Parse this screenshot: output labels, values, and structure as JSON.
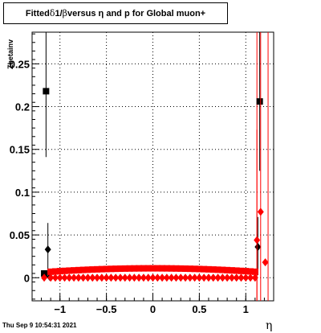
{
  "title": {
    "prefix": "Fitted ",
    "delta": "δ",
    "middle": " 1/",
    "beta": "β",
    "suffix": " versus η and p for Global muon+"
  },
  "timestamp": "Thu Sep  9 10:54:31 2021",
  "x_axis_label": "η",
  "y_axis_label": "Zbetainv",
  "colors": {
    "black_series": "#000000",
    "red_series": "#ff0000",
    "grid": "#000000"
  },
  "chart_data": {
    "type": "scatter",
    "xlim": [
      -1.3,
      1.3
    ],
    "ylim": [
      -0.027,
      0.287
    ],
    "x_ticks": [
      -1,
      -0.5,
      0,
      0.5,
      1
    ],
    "x_tick_labels": [
      "−1",
      "−0.5",
      "0",
      "0.5",
      "1"
    ],
    "y_ticks": [
      0,
      0.05,
      0.1,
      0.15,
      0.2,
      0.25
    ],
    "y_tick_labels": [
      "0",
      "0.05",
      "0.1",
      "0.15",
      "0.2",
      "0.25"
    ],
    "grid": true,
    "series": [
      {
        "marker": "square",
        "color": "#000000",
        "points": [
          {
            "x": -1.15,
            "y": 0.218,
            "ylo": 0.141,
            "yhi": 0.287
          },
          {
            "x": -1.17,
            "y": 0.005
          },
          {
            "x": 1.15,
            "y": 0.206,
            "ylo": 0.125,
            "yhi": 0.287
          }
        ]
      },
      {
        "marker": "diamond",
        "color": "#000000",
        "points": [
          {
            "x": -1.13,
            "y": 0.033,
            "ylo": 0.003,
            "yhi": 0.064
          },
          {
            "x": -1.11,
            "y": 0.001
          },
          {
            "x": 1.13,
            "y": 0.036,
            "ylo": 0.003,
            "yhi": 0.071
          }
        ]
      },
      {
        "marker": "square",
        "color": "#ff0000",
        "band": {
          "x_start": -1.1,
          "x_end": 1.1,
          "y_edge": 0.007,
          "y_mid": 0.011
        }
      },
      {
        "marker": "diamond",
        "color": "#ff0000",
        "band": {
          "x_start": -1.1,
          "x_end": 1.1,
          "y": 0.0
        },
        "points": [
          {
            "x": 1.12,
            "y": 0.044,
            "ylo": -0.027,
            "yhi": 0.173
          },
          {
            "x": 1.16,
            "y": 0.077,
            "ylo": -0.027,
            "yhi": 0.287
          },
          {
            "x": 1.21,
            "y": 0.018
          },
          {
            "x": -1.17,
            "y": 0.0
          }
        ]
      }
    ]
  }
}
